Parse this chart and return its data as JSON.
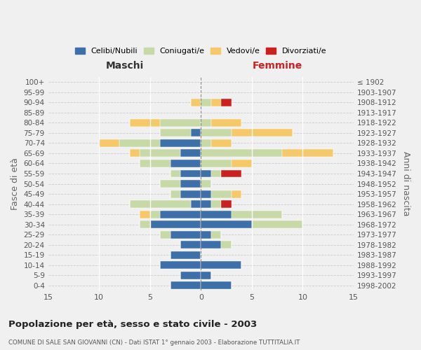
{
  "age_groups": [
    "0-4",
    "5-9",
    "10-14",
    "15-19",
    "20-24",
    "25-29",
    "30-34",
    "35-39",
    "40-44",
    "45-49",
    "50-54",
    "55-59",
    "60-64",
    "65-69",
    "70-74",
    "75-79",
    "80-84",
    "85-89",
    "90-94",
    "95-99",
    "100+"
  ],
  "birth_years": [
    "1998-2002",
    "1993-1997",
    "1988-1992",
    "1983-1987",
    "1978-1982",
    "1973-1977",
    "1968-1972",
    "1963-1967",
    "1958-1962",
    "1953-1957",
    "1948-1952",
    "1943-1947",
    "1938-1942",
    "1933-1937",
    "1928-1932",
    "1923-1927",
    "1918-1922",
    "1913-1917",
    "1908-1912",
    "1903-1907",
    "≤ 1902"
  ],
  "maschi": {
    "celibi": [
      3,
      2,
      4,
      3,
      2,
      3,
      5,
      4,
      1,
      2,
      2,
      2,
      3,
      2,
      4,
      1,
      0,
      0,
      0,
      0,
      0
    ],
    "coniugati": [
      0,
      0,
      0,
      0,
      0,
      1,
      1,
      1,
      6,
      1,
      2,
      1,
      3,
      4,
      4,
      3,
      4,
      0,
      0,
      0,
      0
    ],
    "vedovi": [
      0,
      0,
      0,
      0,
      0,
      0,
      0,
      1,
      0,
      0,
      0,
      0,
      0,
      1,
      2,
      0,
      3,
      0,
      1,
      0,
      0
    ],
    "divorziati": [
      0,
      0,
      0,
      0,
      0,
      0,
      0,
      0,
      0,
      0,
      0,
      0,
      0,
      0,
      0,
      0,
      0,
      0,
      0,
      0,
      0
    ]
  },
  "femmine": {
    "nubili": [
      3,
      1,
      4,
      0,
      2,
      1,
      5,
      3,
      1,
      1,
      0,
      1,
      0,
      0,
      0,
      0,
      0,
      0,
      0,
      0,
      0
    ],
    "coniugate": [
      0,
      0,
      0,
      0,
      1,
      1,
      5,
      5,
      1,
      2,
      1,
      1,
      3,
      8,
      1,
      3,
      1,
      0,
      1,
      0,
      0
    ],
    "vedove": [
      0,
      0,
      0,
      0,
      0,
      0,
      0,
      0,
      0,
      1,
      0,
      0,
      2,
      5,
      2,
      6,
      3,
      0,
      1,
      0,
      0
    ],
    "divorziate": [
      0,
      0,
      0,
      0,
      0,
      0,
      0,
      0,
      1,
      0,
      0,
      2,
      0,
      0,
      0,
      0,
      0,
      0,
      1,
      0,
      0
    ]
  },
  "colors": {
    "celibi_nubili": "#3d6fa8",
    "coniugati": "#c8d9a8",
    "vedovi": "#f5c96a",
    "divorziati": "#cc2020"
  },
  "xlim": 15,
  "title": "Popolazione per età, sesso e stato civile - 2003",
  "subtitle": "COMUNE DI SALE SAN GIOVANNI (CN) - Dati ISTAT 1° gennaio 2003 - Elaborazione TUTTITALIA.IT",
  "xlabel_left": "Maschi",
  "xlabel_right": "Femmine",
  "ylabel_left": "Fasce di età",
  "ylabel_right": "Anni di nascita",
  "legend_labels": [
    "Celibi/Nubili",
    "Coniugati/e",
    "Vedovi/e",
    "Divorziati/e"
  ],
  "bg_color": "#f0f0f0"
}
